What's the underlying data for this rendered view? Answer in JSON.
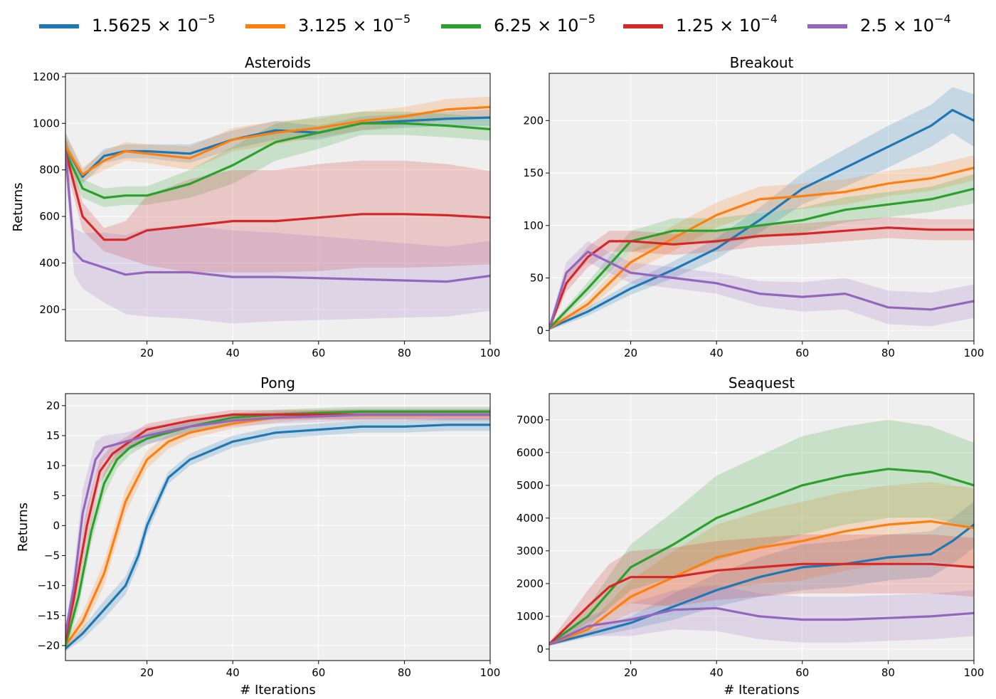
{
  "chart_data": [
    {
      "type": "line",
      "title": "Asteroids",
      "xlabel": "",
      "ylabel": "Returns",
      "xlim": [
        1,
        100
      ],
      "ylim": [
        65,
        1215
      ],
      "xticks": [
        20,
        40,
        60,
        80,
        100
      ],
      "yticks": [
        200,
        400,
        600,
        800,
        1000,
        1200
      ],
      "series": [
        {
          "name": "1.5625e-5",
          "x": [
            1,
            5,
            10,
            15,
            20,
            30,
            40,
            50,
            60,
            70,
            80,
            90,
            100
          ],
          "values": [
            900,
            770,
            860,
            880,
            880,
            870,
            930,
            970,
            960,
            1000,
            1010,
            1020,
            1025
          ],
          "band": [
            60,
            30,
            30,
            30,
            30,
            40,
            40,
            40,
            30,
            30,
            30,
            30,
            35
          ]
        },
        {
          "name": "3.125e-5",
          "x": [
            1,
            5,
            10,
            15,
            20,
            30,
            40,
            50,
            60,
            70,
            80,
            90,
            100
          ],
          "values": [
            900,
            780,
            840,
            880,
            870,
            850,
            930,
            960,
            980,
            1010,
            1030,
            1060,
            1070
          ],
          "band": [
            60,
            30,
            40,
            40,
            40,
            50,
            50,
            50,
            40,
            40,
            40,
            45,
            45
          ]
        },
        {
          "name": "6.25e-5",
          "x": [
            1,
            5,
            10,
            15,
            20,
            30,
            40,
            50,
            60,
            70,
            80,
            90,
            100
          ],
          "values": [
            880,
            720,
            680,
            690,
            690,
            740,
            820,
            920,
            960,
            1000,
            1000,
            990,
            975
          ],
          "band": [
            60,
            40,
            40,
            40,
            40,
            60,
            80,
            80,
            70,
            50,
            50,
            50,
            50
          ]
        },
        {
          "name": "1.25e-4",
          "x": [
            1,
            5,
            10,
            15,
            20,
            30,
            40,
            50,
            60,
            70,
            80,
            90,
            100
          ],
          "values": [
            880,
            600,
            500,
            500,
            540,
            560,
            580,
            580,
            595,
            610,
            610,
            605,
            595
          ],
          "band": [
            60,
            60,
            50,
            80,
            150,
            200,
            220,
            220,
            230,
            230,
            230,
            220,
            200
          ]
        },
        {
          "name": "2.5e-4",
          "x": [
            1,
            3,
            5,
            10,
            15,
            20,
            30,
            40,
            50,
            60,
            70,
            80,
            90,
            100
          ],
          "values": [
            880,
            450,
            410,
            380,
            350,
            360,
            360,
            340,
            340,
            335,
            330,
            325,
            320,
            345
          ],
          "band": [
            80,
            100,
            120,
            150,
            170,
            190,
            200,
            200,
            190,
            180,
            170,
            160,
            150,
            150
          ]
        }
      ]
    },
    {
      "type": "line",
      "title": "Breakout",
      "xlabel": "",
      "ylabel": "",
      "xlim": [
        1,
        100
      ],
      "ylim": [
        -10,
        245
      ],
      "xticks": [
        20,
        40,
        60,
        80,
        100
      ],
      "yticks": [
        0,
        50,
        100,
        150,
        200
      ],
      "series": [
        {
          "name": "1.5625e-5",
          "x": [
            1,
            10,
            20,
            30,
            40,
            50,
            60,
            70,
            80,
            90,
            95,
            100
          ],
          "values": [
            2,
            18,
            40,
            58,
            78,
            105,
            135,
            155,
            175,
            195,
            210,
            200
          ],
          "band": [
            2,
            4,
            6,
            8,
            10,
            12,
            15,
            18,
            20,
            20,
            22,
            25
          ]
        },
        {
          "name": "3.125e-5",
          "x": [
            1,
            10,
            20,
            30,
            40,
            50,
            60,
            70,
            80,
            90,
            100
          ],
          "values": [
            2,
            25,
            65,
            88,
            110,
            125,
            128,
            132,
            140,
            145,
            155
          ],
          "band": [
            2,
            5,
            10,
            12,
            12,
            12,
            12,
            12,
            12,
            12,
            12
          ]
        },
        {
          "name": "6.25e-5",
          "x": [
            1,
            10,
            20,
            30,
            40,
            50,
            60,
            70,
            80,
            90,
            100
          ],
          "values": [
            2,
            40,
            85,
            95,
            95,
            100,
            105,
            115,
            120,
            125,
            135
          ],
          "band": [
            2,
            6,
            10,
            12,
            12,
            12,
            12,
            12,
            12,
            12,
            14
          ]
        },
        {
          "name": "1.25e-4",
          "x": [
            1,
            5,
            10,
            15,
            20,
            30,
            40,
            50,
            60,
            70,
            80,
            90,
            100
          ],
          "values": [
            2,
            45,
            70,
            85,
            85,
            82,
            85,
            90,
            92,
            95,
            98,
            96,
            96
          ],
          "band": [
            2,
            8,
            10,
            10,
            10,
            10,
            10,
            10,
            10,
            10,
            10,
            10,
            10
          ]
        },
        {
          "name": "2.5e-4",
          "x": [
            1,
            5,
            10,
            15,
            20,
            30,
            40,
            50,
            60,
            70,
            80,
            90,
            100
          ],
          "values": [
            2,
            55,
            75,
            65,
            55,
            50,
            45,
            35,
            32,
            35,
            22,
            20,
            28
          ],
          "band": [
            2,
            10,
            10,
            10,
            10,
            10,
            10,
            12,
            14,
            15,
            16,
            16,
            16
          ]
        }
      ]
    },
    {
      "type": "line",
      "title": "Pong",
      "xlabel": "# Iterations",
      "ylabel": "Returns",
      "xlim": [
        1,
        100
      ],
      "ylim": [
        -22.5,
        22
      ],
      "xticks": [
        20,
        40,
        60,
        80,
        100
      ],
      "yticks": [
        -20,
        -15,
        -10,
        -5,
        0,
        5,
        10,
        15,
        20
      ],
      "series": [
        {
          "name": "1.5625e-5",
          "x": [
            1,
            5,
            10,
            15,
            18,
            20,
            25,
            30,
            40,
            50,
            60,
            70,
            80,
            90,
            100
          ],
          "values": [
            -20.5,
            -18,
            -14,
            -10,
            -5,
            0,
            8,
            11,
            14,
            15.5,
            16,
            16.5,
            16.5,
            16.8,
            16.8
          ],
          "band": [
            0.5,
            1,
            1.5,
            1.5,
            1.5,
            1.5,
            1,
            1,
            1,
            1,
            1,
            1,
            1,
            1,
            1
          ]
        },
        {
          "name": "3.125e-5",
          "x": [
            1,
            5,
            10,
            15,
            20,
            25,
            30,
            40,
            50,
            60,
            70,
            80,
            90,
            100
          ],
          "values": [
            -20,
            -16,
            -8,
            4,
            11,
            14,
            15.5,
            17,
            18,
            18.5,
            18.5,
            18.5,
            18.5,
            18.5
          ],
          "band": [
            1,
            1.5,
            2,
            2,
            1.5,
            1.2,
            1,
            0.8,
            0.8,
            0.8,
            0.8,
            0.8,
            0.8,
            0.8
          ]
        },
        {
          "name": "6.25e-5",
          "x": [
            1,
            4,
            7,
            10,
            13,
            16,
            20,
            30,
            40,
            50,
            60,
            70,
            80,
            90,
            100
          ],
          "values": [
            -20,
            -12,
            -1,
            7,
            11,
            13,
            14.5,
            16.5,
            18,
            18.5,
            18.8,
            19,
            19,
            19,
            19
          ],
          "band": [
            1,
            2,
            2,
            2,
            1.5,
            1.2,
            1,
            0.8,
            0.8,
            0.8,
            0.8,
            0.8,
            0.8,
            0.8,
            0.8
          ]
        },
        {
          "name": "1.25e-4",
          "x": [
            1,
            3,
            6,
            9,
            12,
            15,
            20,
            30,
            40,
            50,
            60,
            70,
            80,
            90,
            100
          ],
          "values": [
            -19,
            -12,
            0,
            9,
            12,
            13.5,
            16,
            17.5,
            18.5,
            18.5,
            18.5,
            18.5,
            18.5,
            18.5,
            18.5
          ],
          "band": [
            1,
            2,
            3,
            2,
            1.5,
            1.2,
            1,
            0.8,
            0.8,
            0.8,
            0.8,
            0.8,
            0.8,
            0.8,
            0.8
          ]
        },
        {
          "name": "2.5e-4",
          "x": [
            1,
            3,
            5,
            8,
            10,
            15,
            20,
            30,
            40,
            50,
            60,
            70,
            80,
            90,
            100
          ],
          "values": [
            -18,
            -10,
            2,
            11,
            13,
            14,
            15,
            16.5,
            17.5,
            18,
            18.2,
            18.5,
            18.5,
            18.5,
            18.5
          ],
          "band": [
            1,
            3,
            4,
            3,
            2,
            1.5,
            1.5,
            1,
            1,
            1,
            1,
            1,
            1,
            1,
            1
          ]
        }
      ]
    },
    {
      "type": "line",
      "title": "Seaquest",
      "xlabel": "# Iterations",
      "ylabel": "",
      "xlim": [
        1,
        100
      ],
      "ylim": [
        -350,
        7800
      ],
      "xticks": [
        20,
        40,
        60,
        80,
        100
      ],
      "yticks": [
        0,
        1000,
        2000,
        3000,
        4000,
        5000,
        6000,
        7000
      ],
      "series": [
        {
          "name": "1.5625e-5",
          "x": [
            1,
            10,
            20,
            30,
            40,
            50,
            60,
            70,
            80,
            90,
            95,
            100
          ],
          "values": [
            150,
            450,
            800,
            1300,
            1800,
            2200,
            2500,
            2600,
            2800,
            2900,
            3300,
            3800
          ],
          "band": [
            50,
            100,
            200,
            400,
            500,
            600,
            700,
            700,
            700,
            700,
            700,
            700
          ]
        },
        {
          "name": "3.125e-5",
          "x": [
            1,
            10,
            20,
            30,
            40,
            50,
            60,
            70,
            80,
            90,
            100
          ],
          "values": [
            150,
            600,
            1600,
            2200,
            2800,
            3100,
            3300,
            3600,
            3800,
            3900,
            3700
          ],
          "band": [
            50,
            150,
            500,
            800,
            1000,
            1100,
            1200,
            1200,
            1200,
            1200,
            1200
          ]
        },
        {
          "name": "6.25e-5",
          "x": [
            1,
            10,
            20,
            30,
            40,
            50,
            60,
            70,
            80,
            90,
            100
          ],
          "values": [
            150,
            1000,
            2500,
            3200,
            4000,
            4500,
            5000,
            5300,
            5500,
            5400,
            5000
          ],
          "band": [
            50,
            300,
            700,
            1000,
            1300,
            1400,
            1500,
            1500,
            1500,
            1400,
            1300
          ]
        },
        {
          "name": "1.25e-4",
          "x": [
            1,
            10,
            15,
            20,
            30,
            40,
            50,
            60,
            70,
            80,
            90,
            100
          ],
          "values": [
            150,
            1300,
            1900,
            2200,
            2200,
            2400,
            2500,
            2600,
            2600,
            2600,
            2600,
            2500
          ],
          "band": [
            50,
            500,
            700,
            800,
            900,
            900,
            900,
            900,
            900,
            900,
            900,
            900
          ]
        },
        {
          "name": "2.5e-4",
          "x": [
            1,
            10,
            20,
            30,
            40,
            50,
            60,
            70,
            80,
            90,
            100
          ],
          "values": [
            150,
            700,
            900,
            1200,
            1250,
            1000,
            900,
            900,
            950,
            1000,
            1100
          ],
          "band": [
            50,
            300,
            500,
            600,
            700,
            700,
            700,
            700,
            700,
            700,
            700
          ]
        }
      ]
    }
  ],
  "legend": [
    {
      "base": "1.5625 × 10",
      "exp": "−5",
      "color": "#1f77b4"
    },
    {
      "base": "3.125 × 10",
      "exp": "−5",
      "color": "#ff7f0e"
    },
    {
      "base": "6.25 × 10",
      "exp": "−5",
      "color": "#2ca02c"
    },
    {
      "base": "1.25 × 10",
      "exp": "−4",
      "color": "#d62728"
    },
    {
      "base": "2.5 × 10",
      "exp": "−4",
      "color": "#9467bd"
    }
  ],
  "colors": [
    "#1f77b4",
    "#ff7f0e",
    "#2ca02c",
    "#d62728",
    "#9467bd"
  ]
}
